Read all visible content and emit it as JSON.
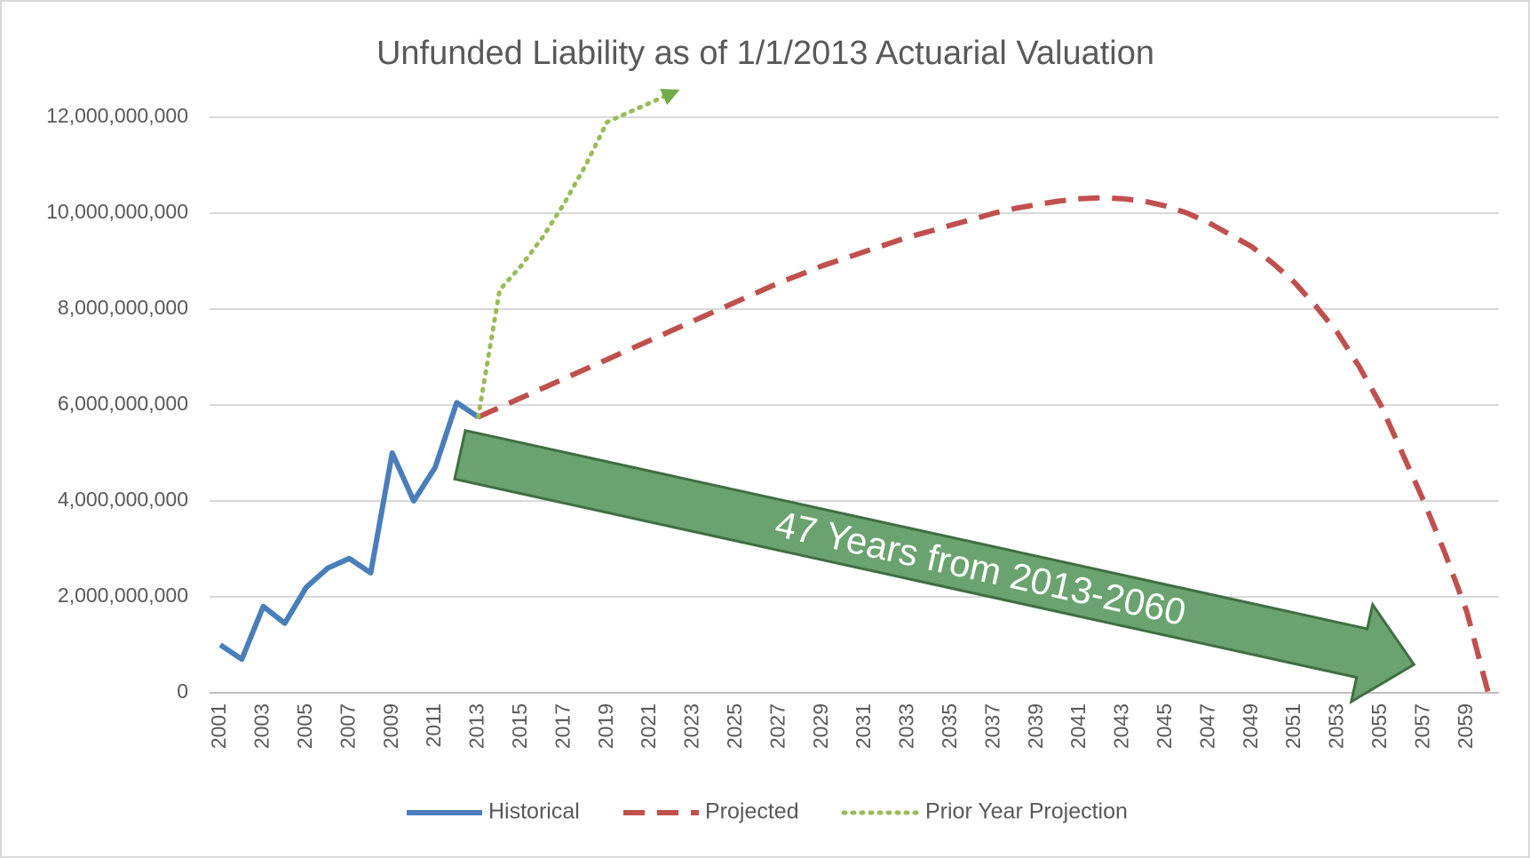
{
  "chart_data": {
    "type": "line",
    "title": "Unfunded Liability as of 1/1/2013 Actuarial Valuation",
    "annotation": "47 Years from 2013-2060",
    "categories": [
      "2001",
      null,
      "2003",
      null,
      "2005",
      null,
      "2007",
      null,
      "2009",
      null,
      "2011",
      null,
      "2013",
      null,
      "2015",
      null,
      "2017",
      null,
      "2019",
      null,
      "2021",
      null,
      "2023",
      null,
      "2025",
      null,
      "2027",
      null,
      "2029",
      null,
      "2031",
      null,
      "2033",
      null,
      "2035",
      null,
      "2037",
      null,
      "2039",
      null,
      "2041",
      null,
      "2043",
      null,
      "2045",
      null,
      "2047",
      null,
      "2049",
      null,
      "2051",
      null,
      "2053",
      null,
      "2055",
      null,
      "2057",
      null,
      "2059",
      null
    ],
    "series": [
      {
        "name": "Historical",
        "color": "#4a7ebb",
        "style": "solid",
        "values": [
          1000000000,
          700000000,
          1800000000,
          1450000000,
          2200000000,
          2600000000,
          2800000000,
          2500000000,
          5000000000,
          4000000000,
          4700000000,
          6050000000,
          5750000000,
          null,
          null,
          null,
          null,
          null,
          null,
          null,
          null,
          null,
          null,
          null,
          null,
          null,
          null,
          null,
          null,
          null,
          null,
          null,
          null,
          null,
          null,
          null,
          null,
          null,
          null,
          null,
          null,
          null,
          null,
          null,
          null,
          null,
          null,
          null,
          null,
          null,
          null,
          null,
          null,
          null,
          null,
          null,
          null,
          null,
          null,
          null
        ]
      },
      {
        "name": "Projected",
        "color": "#c0504d",
        "style": "dashed",
        "values": [
          null,
          null,
          null,
          null,
          null,
          null,
          null,
          null,
          null,
          null,
          null,
          null,
          5750000000,
          5950000000,
          6150000000,
          6350000000,
          6550000000,
          6750000000,
          6950000000,
          7150000000,
          7350000000,
          7550000000,
          7750000000,
          7950000000,
          8150000000,
          8350000000,
          8550000000,
          8720000000,
          8900000000,
          9050000000,
          9200000000,
          9350000000,
          9500000000,
          9620000000,
          9750000000,
          9870000000,
          10000000000,
          10100000000,
          10180000000,
          10250000000,
          10300000000,
          10320000000,
          10300000000,
          10250000000,
          10150000000,
          10000000000,
          9800000000,
          9550000000,
          9300000000,
          8950000000,
          8550000000,
          8050000000,
          7500000000,
          6800000000,
          6000000000,
          5000000000,
          4000000000,
          2900000000,
          1700000000,
          0
        ]
      },
      {
        "name": "Prior Year Projection",
        "color": "#9bbb59",
        "style": "dotted",
        "values": [
          null,
          null,
          null,
          null,
          null,
          null,
          null,
          null,
          null,
          null,
          null,
          null,
          5750000000,
          8400000000,
          8900000000,
          9500000000,
          10200000000,
          11000000000,
          11900000000,
          12100000000,
          12300000000,
          12500000000,
          null,
          null,
          null,
          null,
          null,
          null,
          null,
          null,
          null,
          null,
          null,
          null,
          null,
          null,
          null,
          null,
          null,
          null,
          null,
          null,
          null,
          null,
          null,
          null,
          null,
          null,
          null,
          null,
          null,
          null,
          null,
          null,
          null,
          null,
          null,
          null,
          null,
          null
        ]
      }
    ],
    "ylim": [
      0,
      12000000000
    ],
    "yticks": [
      0,
      {
        "value": 2000000000,
        "label": "2,000,000,000"
      },
      {
        "value": 4000000000,
        "label": "4,000,000,000"
      },
      {
        "value": 6000000000,
        "label": "6,000,000,000"
      },
      {
        "value": 8000000000,
        "label": "8,000,000,000"
      },
      {
        "value": 10000000000,
        "label": "10,000,000,000"
      },
      {
        "value": 12000000000,
        "label": "12,000,000,000"
      }
    ],
    "grid": true,
    "legend": "bottom"
  }
}
